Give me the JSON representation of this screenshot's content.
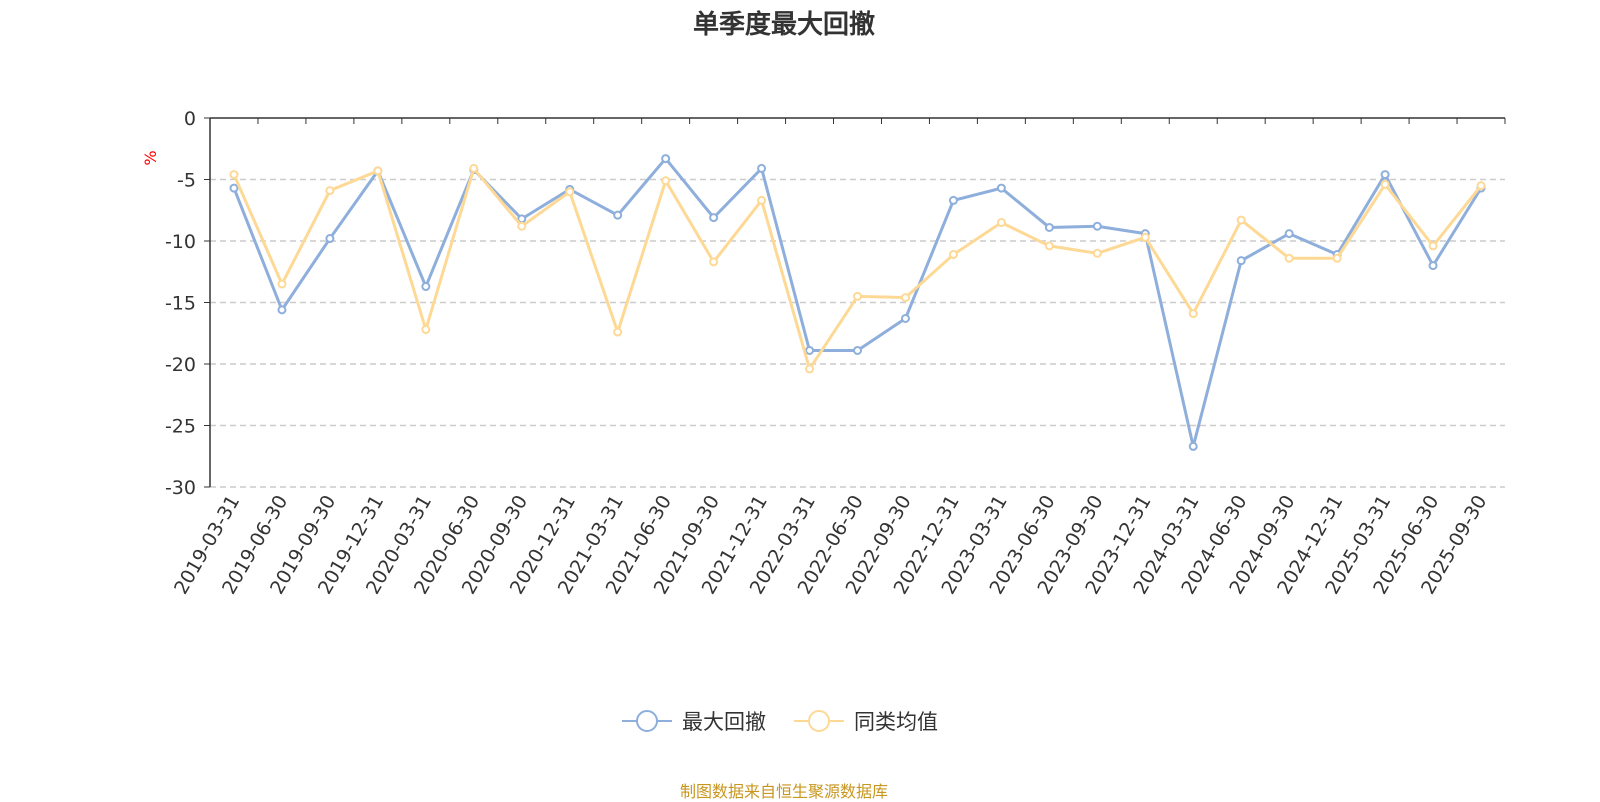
{
  "chart_data": {
    "type": "line",
    "title": "单季度最大回撤",
    "ylabel": "%",
    "ylim": [
      -30,
      0
    ],
    "yticks": [
      0,
      -5,
      -10,
      -15,
      -20,
      -25,
      -30
    ],
    "grid": true,
    "legend_position": "bottom-center",
    "categories": [
      "2019-03-31",
      "2019-06-30",
      "2019-09-30",
      "2019-12-31",
      "2020-03-31",
      "2020-06-30",
      "2020-09-30",
      "2020-12-31",
      "2021-03-31",
      "2021-06-30",
      "2021-09-30",
      "2021-12-31",
      "2022-03-31",
      "2022-06-30",
      "2022-09-30",
      "2022-12-31",
      "2023-03-31",
      "2023-06-30",
      "2023-09-30",
      "2023-12-31",
      "2024-03-31",
      "2024-06-30",
      "2024-09-30",
      "2024-12-31",
      "2025-03-31",
      "2025-06-30",
      "2025-09-30"
    ],
    "series": [
      {
        "name": "最大回撤",
        "color": "#8eaedc",
        "values": [
          -5.7,
          -15.6,
          -9.8,
          -4.3,
          -13.7,
          -4.2,
          -8.2,
          -5.8,
          -7.9,
          -3.3,
          -8.1,
          -4.1,
          -18.9,
          -18.9,
          -16.3,
          -6.7,
          -5.7,
          -8.9,
          -8.8,
          -9.4,
          -26.7,
          -11.6,
          -9.4,
          -11.1,
          -4.6,
          -12.0,
          -5.7
        ]
      },
      {
        "name": "同类均值",
        "color": "#fdd995",
        "values": [
          -4.6,
          -13.5,
          -5.9,
          -4.3,
          -17.2,
          -4.1,
          -8.8,
          -6.0,
          -17.4,
          -5.1,
          -11.7,
          -6.7,
          -20.4,
          -14.5,
          -14.6,
          -11.1,
          -8.5,
          -10.4,
          -11.0,
          -9.7,
          -15.9,
          -8.3,
          -11.4,
          -11.4,
          -5.4,
          -10.4,
          -5.5
        ]
      }
    ]
  },
  "source": "制图数据来自恒生聚源数据库"
}
